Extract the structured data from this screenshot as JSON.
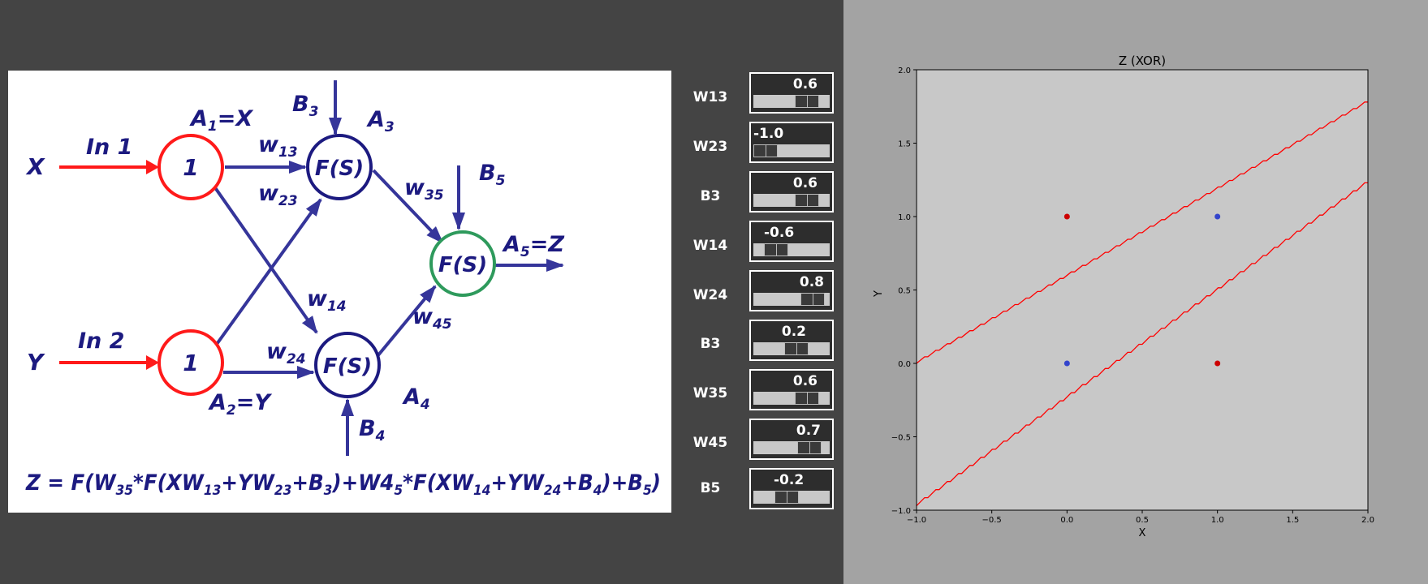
{
  "diagram": {
    "input_x": "X",
    "input_y": "Y",
    "in1": "In 1",
    "in2": "In 2",
    "node1_text": "1",
    "node2_text": "1",
    "fs_text": "F(S)",
    "a1_prefix": "A",
    "a1_sub": "1",
    "a1_suffix": "=X",
    "a2_prefix": "A",
    "a2_sub": "2",
    "a2_suffix": "=Y",
    "a3_prefix": "A",
    "a3_sub": "3",
    "a4_prefix": "A",
    "a4_sub": "4",
    "a5_prefix": "A",
    "a5_sub": "5",
    "a5_suffix": "=Z",
    "b3_prefix": "B",
    "b3_sub": "3",
    "b4_prefix": "B",
    "b4_sub": "4",
    "b5_prefix": "B",
    "b5_sub": "5",
    "w13_prefix": "w",
    "w13_sub": "13",
    "w23_prefix": "w",
    "w23_sub": "23",
    "w14_prefix": "w",
    "w14_sub": "14",
    "w24_prefix": "w",
    "w24_sub": "24",
    "w35_prefix": "w",
    "w35_sub": "35",
    "w45_prefix": "w",
    "w45_sub": "45",
    "formula": {
      "t1": "Z = F(W",
      "s1": "35",
      "t2": "*F(XW",
      "s2": "13",
      "t3": "+YW",
      "s3": "23",
      "t4": "+B",
      "s4": "3",
      "t5": ")+W4",
      "s5": "5",
      "t6": "*F(XW",
      "s6": "14",
      "t7": "+YW",
      "s7": "24",
      "t8": "+B",
      "s8": "4",
      "t9": ")+B",
      "s9": "5",
      "t10": ")"
    },
    "colors": {
      "navy": "#1c1a80",
      "red": "#ff1a1a",
      "green": "#2e9a5c",
      "arrow": "#35359a"
    }
  },
  "sliders": [
    {
      "label": "W13",
      "value": "0.6",
      "fraction": 0.8
    },
    {
      "label": "W23",
      "value": "-1.0",
      "fraction": 0.0
    },
    {
      "label": "B3",
      "value": "0.6",
      "fraction": 0.8
    },
    {
      "label": "W14",
      "value": "-0.6",
      "fraction": 0.2
    },
    {
      "label": "W24",
      "value": "0.8",
      "fraction": 0.9
    },
    {
      "label": "B3",
      "value": "0.2",
      "fraction": 0.6
    },
    {
      "label": "W35",
      "value": "0.6",
      "fraction": 0.8
    },
    {
      "label": "W45",
      "value": "0.7",
      "fraction": 0.85
    },
    {
      "label": "B5",
      "value": "-0.2",
      "fraction": 0.4
    }
  ],
  "chart_data": {
    "type": "line",
    "title": "Z (XOR)",
    "xlabel": "X",
    "ylabel": "Y",
    "xlim": [
      -1.0,
      2.0
    ],
    "ylim": [
      -1.0,
      2.0
    ],
    "xticks": [
      "-1.0",
      "-0.5",
      "0.0",
      "0.5",
      "1.0",
      "1.5",
      "2.0"
    ],
    "yticks": [
      "-1.0",
      "-0.5",
      "0.0",
      "0.5",
      "1.0",
      "1.5",
      "2.0"
    ],
    "grid": false,
    "background": "#c8c8c8",
    "series": [
      {
        "color": "#ff0000",
        "x": [
          -1.0,
          2.0
        ],
        "y": [
          0.0,
          1.78
        ]
      },
      {
        "color": "#ff0000",
        "x": [
          -1.0,
          2.0
        ],
        "y": [
          -0.97,
          1.23
        ]
      }
    ],
    "points": [
      {
        "x": 0.0,
        "y": 1.0,
        "color": "#cc0000"
      },
      {
        "x": 1.0,
        "y": 1.0,
        "color": "#3344cc"
      },
      {
        "x": 0.0,
        "y": 0.0,
        "color": "#3344cc"
      },
      {
        "x": 1.0,
        "y": 0.0,
        "color": "#cc0000"
      }
    ]
  }
}
